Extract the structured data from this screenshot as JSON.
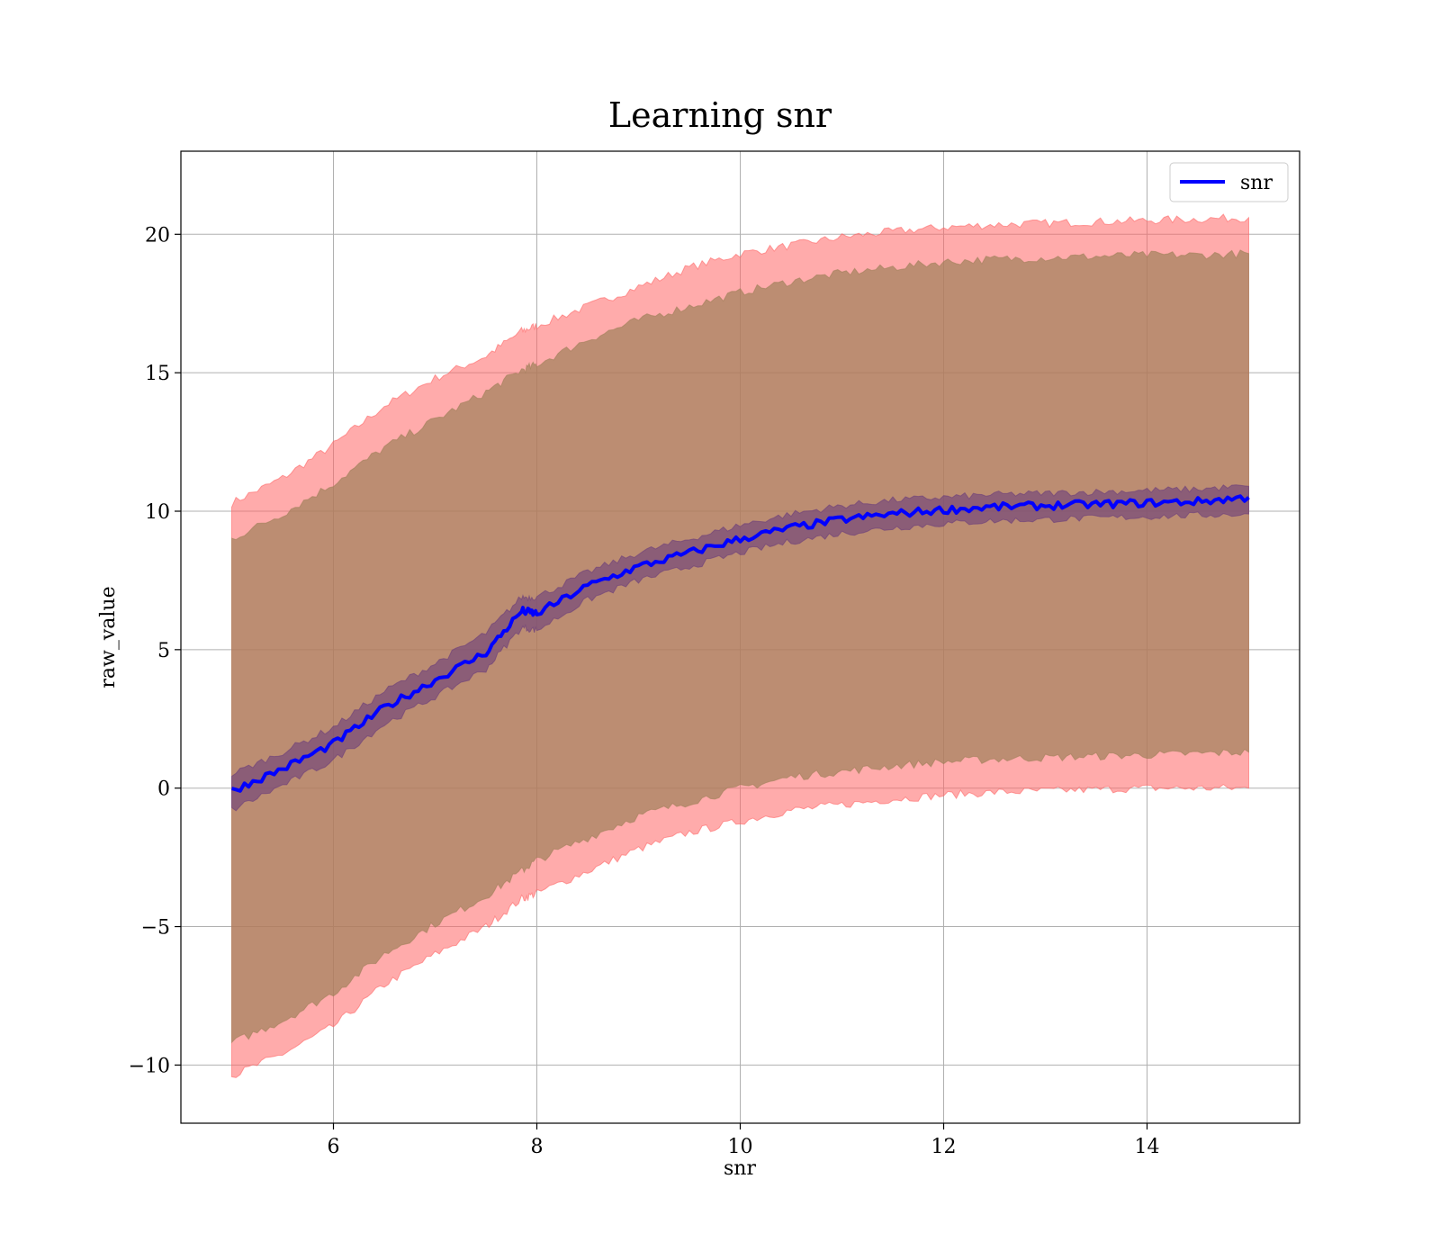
{
  "chart_data": {
    "type": "line",
    "title": "Learning snr",
    "xlabel": "snr",
    "ylabel": "raw_value",
    "xlim": [
      4.5,
      15.5
    ],
    "ylim": [
      -12.1,
      23.0
    ],
    "xticks": [
      6,
      8,
      10,
      12,
      14
    ],
    "yticks": [
      -10,
      -5,
      0,
      5,
      10,
      15,
      20
    ],
    "ytick_labels": [
      "−10",
      "−5",
      "0",
      "5",
      "10",
      "15",
      "20"
    ],
    "grid": true,
    "legend": {
      "placement": "upper right",
      "entries": [
        "snr"
      ]
    },
    "colors": {
      "line": "#0000ff",
      "outer_band": "#ff6666",
      "middle_band": "#a0805a",
      "inner_band": "#6a3e7c",
      "grid": "#b0b0b0"
    },
    "x": [
      5.0,
      5.5,
      6.0,
      6.5,
      7.0,
      7.5,
      7.85,
      8.0,
      8.5,
      9.0,
      9.5,
      10.0,
      10.5,
      11.0,
      11.5,
      12.0,
      12.5,
      13.0,
      13.5,
      14.0,
      14.5,
      15.0
    ],
    "series": [
      {
        "name": "snr",
        "values": [
          -0.1,
          0.7,
          1.6,
          2.9,
          3.9,
          4.9,
          6.4,
          6.3,
          7.3,
          8.0,
          8.5,
          9.0,
          9.4,
          9.7,
          9.9,
          10.05,
          10.15,
          10.2,
          10.25,
          10.3,
          10.35,
          10.5
        ]
      }
    ],
    "bands": [
      {
        "label": "outer",
        "upper": [
          10.3,
          11.2,
          12.4,
          13.8,
          14.8,
          15.6,
          16.5,
          16.7,
          17.4,
          18.1,
          18.8,
          19.3,
          19.6,
          19.9,
          20.1,
          20.25,
          20.35,
          20.4,
          20.45,
          20.5,
          20.55,
          20.6
        ],
        "lower": [
          -10.4,
          -9.6,
          -8.6,
          -7.1,
          -6.0,
          -5.0,
          -4.0,
          -3.8,
          -3.0,
          -2.2,
          -1.6,
          -1.2,
          -0.8,
          -0.6,
          -0.4,
          -0.25,
          -0.15,
          -0.1,
          -0.05,
          0.0,
          0.0,
          0.0
        ]
      },
      {
        "label": "middle",
        "upper": [
          9.0,
          9.9,
          11.0,
          12.3,
          13.3,
          14.3,
          15.1,
          15.3,
          16.2,
          16.9,
          17.4,
          17.9,
          18.3,
          18.6,
          18.8,
          19.0,
          19.1,
          19.15,
          19.2,
          19.25,
          19.25,
          19.3
        ],
        "lower": [
          -9.2,
          -8.4,
          -7.4,
          -6.0,
          -4.9,
          -3.9,
          -3.0,
          -2.6,
          -1.8,
          -1.0,
          -0.5,
          0.0,
          0.4,
          0.6,
          0.8,
          0.95,
          1.05,
          1.1,
          1.15,
          1.2,
          1.25,
          1.3
        ]
      },
      {
        "label": "inner",
        "upper": [
          0.5,
          1.3,
          2.2,
          3.5,
          4.5,
          5.6,
          6.9,
          6.9,
          7.8,
          8.5,
          9.0,
          9.5,
          9.9,
          10.2,
          10.4,
          10.5,
          10.6,
          10.65,
          10.7,
          10.75,
          10.8,
          10.9
        ],
        "lower": [
          -0.8,
          0.1,
          1.0,
          2.3,
          3.3,
          4.3,
          5.8,
          5.7,
          6.8,
          7.5,
          8.0,
          8.5,
          8.9,
          9.2,
          9.4,
          9.55,
          9.65,
          9.7,
          9.75,
          9.8,
          9.85,
          9.9
        ]
      }
    ]
  }
}
